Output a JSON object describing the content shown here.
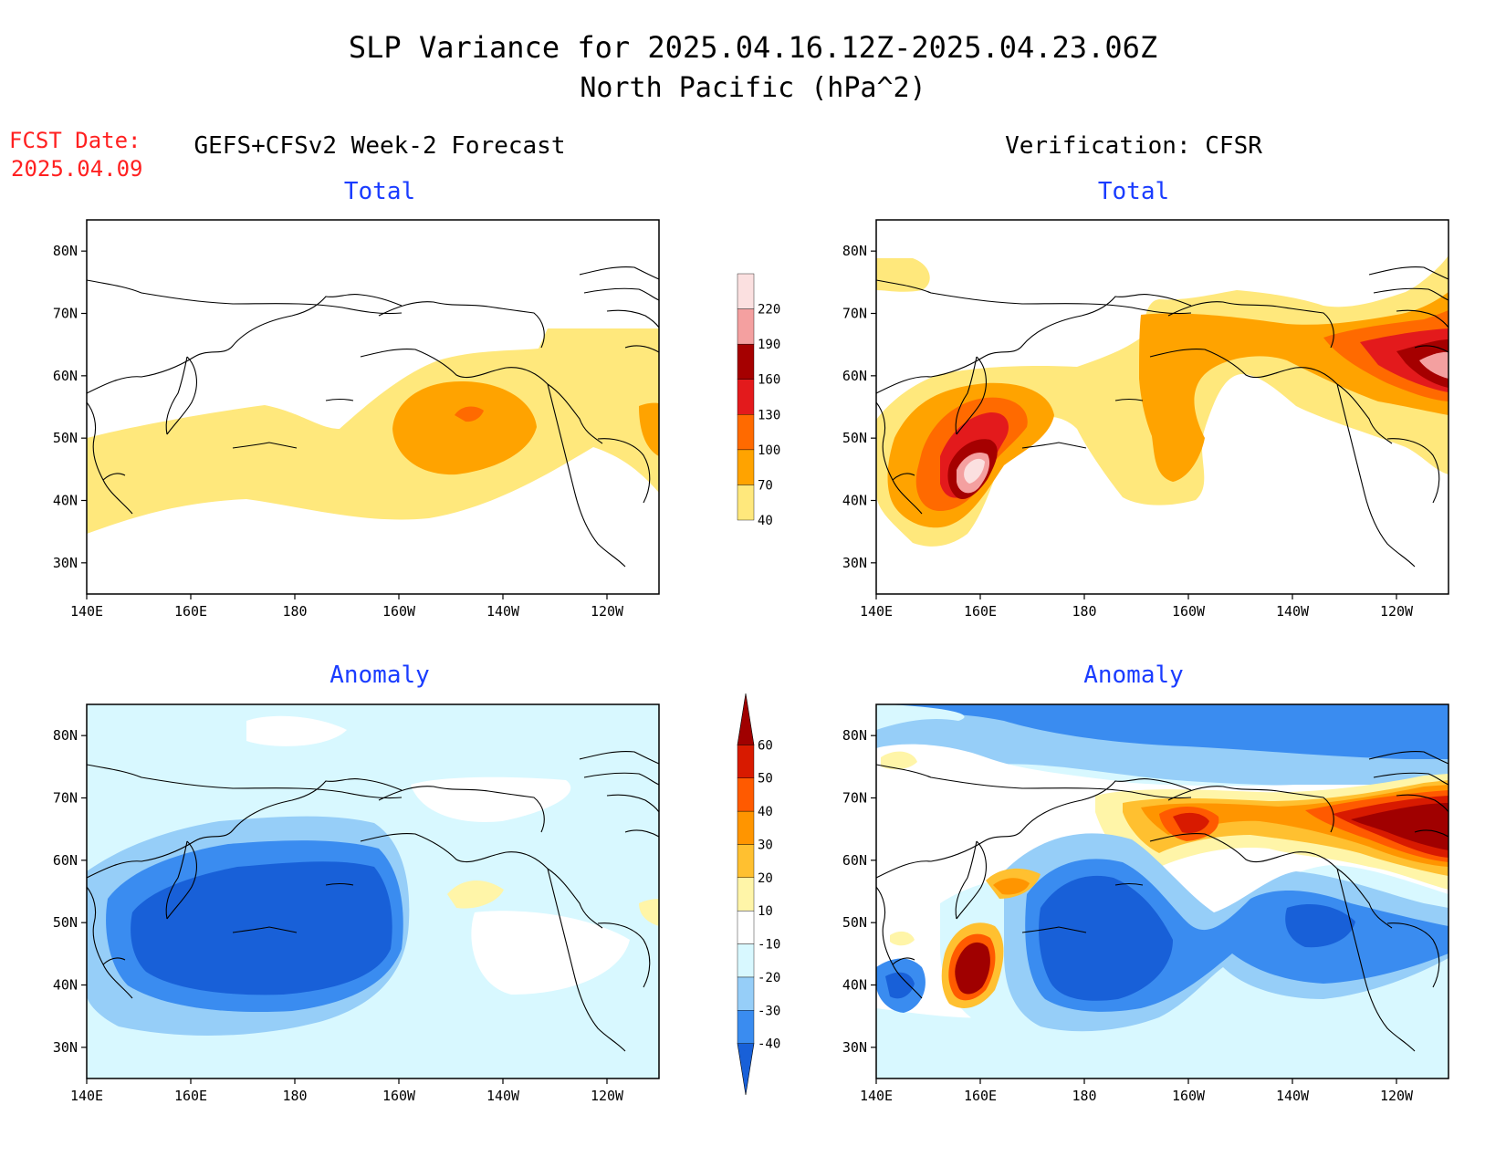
{
  "title": {
    "line1": "SLP Variance for 2025.04.16.12Z-2025.04.23.06Z",
    "line2": "North Pacific (hPa^2)"
  },
  "fcst_date": {
    "label": "FCST Date:",
    "value": "2025.04.09"
  },
  "columns": {
    "left": "GEFS+CFSv2 Week-2 Forecast",
    "right": "Verification: CFSR"
  },
  "row_titles": {
    "top": "Total",
    "bottom": "Anomaly"
  },
  "axes": {
    "lon_ticks": [
      "140E",
      "160E",
      "180",
      "160W",
      "140W",
      "120W"
    ],
    "lon_values": [
      140,
      160,
      180,
      200,
      220,
      240
    ],
    "lat_ticks": [
      "30N",
      "40N",
      "50N",
      "60N",
      "70N",
      "80N"
    ],
    "lat_values": [
      30,
      40,
      50,
      60,
      70,
      80
    ],
    "lon_range": [
      140,
      250
    ],
    "lat_range": [
      25,
      85
    ]
  },
  "colorbars": {
    "total": {
      "labels": [
        "40",
        "70",
        "100",
        "130",
        "160",
        "190",
        "220"
      ],
      "colors": [
        "#ffe87c",
        "#ffa300",
        "#ff6a00",
        "#e31a1c",
        "#a50000",
        "#f4a0a0",
        "#fbe0e0"
      ]
    },
    "anomaly": {
      "labels": [
        "-40",
        "-30",
        "-20",
        "-10",
        "10",
        "20",
        "30",
        "40",
        "50",
        "60"
      ],
      "colors": [
        "#1860d8",
        "#3a8cf0",
        "#96cef8",
        "#d8f8ff",
        "#ffffff",
        "#fff5a8",
        "#ffc030",
        "#ff9500",
        "#ff5a00",
        "#d81a00",
        "#a00000"
      ]
    }
  }
}
